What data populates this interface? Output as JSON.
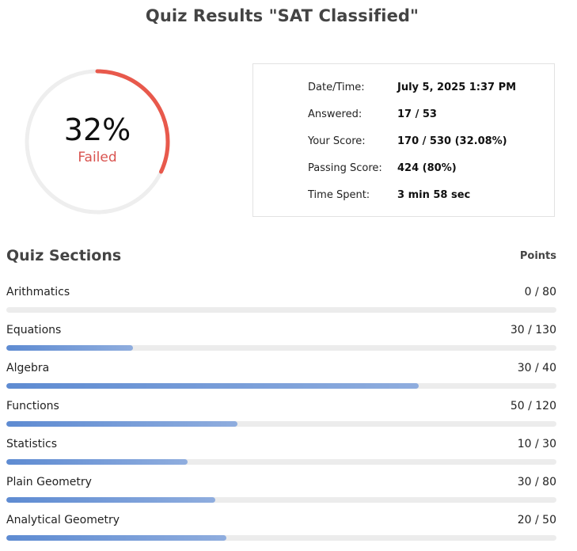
{
  "title": "Quiz Results \"SAT Classified\"",
  "result": {
    "percent_label": "32%",
    "percent_value": 0.32,
    "status": "Failed",
    "colors": {
      "progress": "#e8594c",
      "track": "#eeeeee",
      "status": "#d9534f"
    }
  },
  "summary": [
    {
      "label": "Date/Time:",
      "value": "July 5, 2025 1:37 PM"
    },
    {
      "label": "Answered:",
      "value": "17 / 53"
    },
    {
      "label": "Your Score:",
      "value": "170 / 530 (32.08%)"
    },
    {
      "label": "Passing Score:",
      "value": "424 (80%)"
    },
    {
      "label": "Time Spent:",
      "value": "3 min 58 sec"
    }
  ],
  "sections_heading": "Quiz Sections",
  "points_heading": "Points",
  "sections": [
    {
      "name": "Arithmatics",
      "score": "0 / 80",
      "fraction": 0.0
    },
    {
      "name": "Equations",
      "score": "30 / 130",
      "fraction": 0.23
    },
    {
      "name": "Algebra",
      "score": "30 / 40",
      "fraction": 0.75
    },
    {
      "name": "Functions",
      "score": "50 / 120",
      "fraction": 0.42
    },
    {
      "name": "Statistics",
      "score": "10 / 30",
      "fraction": 0.33
    },
    {
      "name": "Plain Geometry",
      "score": "30 / 80",
      "fraction": 0.38
    },
    {
      "name": "Analytical Geometry",
      "score": "20 / 50",
      "fraction": 0.4
    }
  ]
}
